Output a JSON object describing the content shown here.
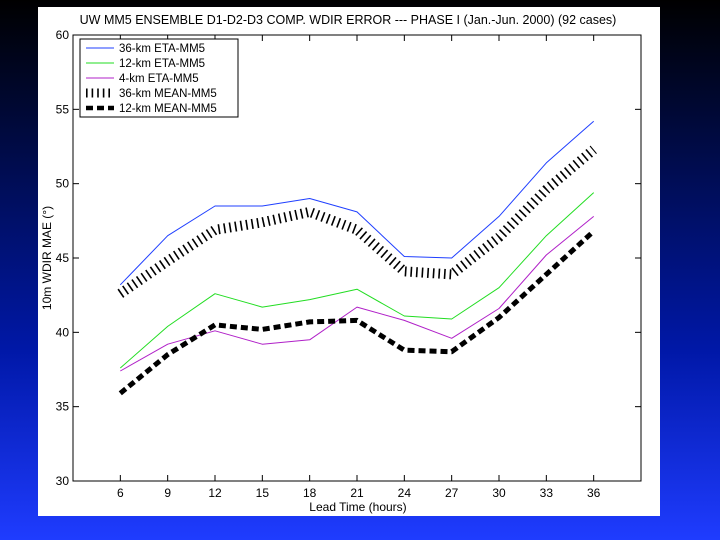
{
  "chart_data": {
    "type": "line",
    "title": "UW MM5 ENSEMBLE D1-D2-D3 COMP. WDIR ERROR --- PHASE I (Jan.-Jun. 2000) (92 cases)",
    "xlabel": "Lead Time (hours)",
    "ylabel": "10m WDIR MAE (°)",
    "x": [
      6,
      9,
      12,
      15,
      18,
      21,
      24,
      27,
      30,
      33,
      36
    ],
    "xlim": [
      3,
      39
    ],
    "ylim": [
      30,
      60
    ],
    "yticks": [
      30,
      35,
      40,
      45,
      50,
      55,
      60
    ],
    "legend_position": "top-left",
    "grid": false,
    "series": [
      {
        "name": "36-km ETA-MM5",
        "color": "#1f3fff",
        "style": "solid",
        "values": [
          43.2,
          46.5,
          48.5,
          48.5,
          49.0,
          48.1,
          45.1,
          45.0,
          47.8,
          51.4,
          54.2
        ]
      },
      {
        "name": "12-km ETA-MM5",
        "color": "#22dd22",
        "style": "solid",
        "values": [
          37.6,
          40.4,
          42.6,
          41.7,
          42.2,
          42.9,
          41.1,
          40.9,
          43.0,
          46.5,
          49.4
        ]
      },
      {
        "name": "4-km ETA-MM5",
        "color": "#b020c8",
        "style": "solid",
        "values": [
          37.4,
          39.2,
          40.1,
          39.2,
          39.5,
          41.7,
          40.8,
          39.6,
          41.6,
          45.2,
          47.8
        ]
      },
      {
        "name": "36-km MEAN-MM5",
        "color": "#000000",
        "style": "hatched",
        "values": [
          42.6,
          44.8,
          46.9,
          47.4,
          48.1,
          46.9,
          44.1,
          43.9,
          46.4,
          49.6,
          52.3
        ]
      },
      {
        "name": "12-km MEAN-MM5",
        "color": "#000000",
        "style": "dashed",
        "values": [
          35.9,
          38.5,
          40.5,
          40.2,
          40.7,
          40.8,
          38.8,
          38.7,
          41.0,
          43.9,
          46.8
        ]
      }
    ]
  }
}
